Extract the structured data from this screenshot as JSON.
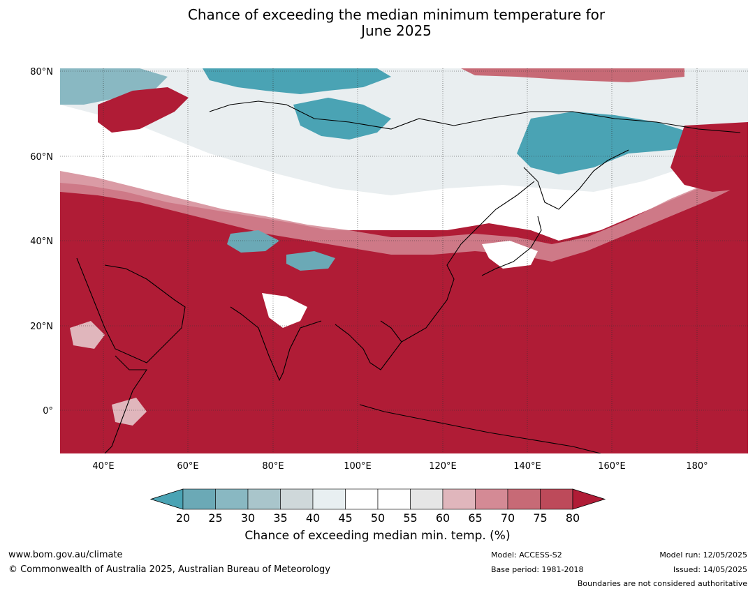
{
  "title": {
    "line1": "Chance of exceeding the median minimum temperature for",
    "line2": "June 2025"
  },
  "map": {
    "lat_labels": [
      "80°N",
      "60°N",
      "40°N",
      "20°N",
      "0°"
    ],
    "lon_labels": [
      "40°E",
      "60°E",
      "80°E",
      "100°E",
      "120°E",
      "140°E",
      "160°E",
      "180°"
    ],
    "colors": {
      "dominant_warm": "#b01c36",
      "cool": "#47a4b5",
      "neutral": "#ffffff"
    }
  },
  "colorbar": {
    "ticks": [
      "20",
      "25",
      "30",
      "35",
      "40",
      "45",
      "50",
      "55",
      "60",
      "65",
      "70",
      "75",
      "80"
    ],
    "colors": [
      "#4aa3b4",
      "#6ba9b6",
      "#89b8c2",
      "#a9c5cb",
      "#cfd8da",
      "#e8eff1",
      "#ffffff",
      "#ffffff",
      "#e6e6e6",
      "#e0b6bc",
      "#d48a95",
      "#c76a76",
      "#bd4a5a",
      "#b01c36"
    ],
    "label": "Chance of exceeding median min. temp. (%)"
  },
  "footer": {
    "website": "www.bom.gov.au/climate",
    "copyright": "© Commonwealth of Australia 2025, Australian Bureau of Meteorology",
    "model": "Model: ACCESS-S2",
    "base_period": "Base period: 1981-2018",
    "model_run": "Model run: 12/05/2025",
    "issued": "Issued: 14/05/2025",
    "disclaimer": "Boundaries are not considered authoritative"
  }
}
